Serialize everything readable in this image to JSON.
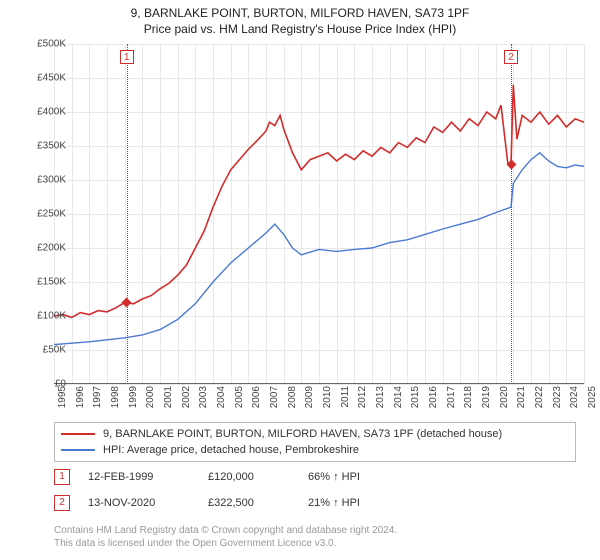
{
  "title": "9, BARNLAKE POINT, BURTON, MILFORD HAVEN, SA73 1PF",
  "subtitle": "Price paid vs. HM Land Registry's House Price Index (HPI)",
  "chart": {
    "type": "line",
    "background_color": "#fdfdfd",
    "grid_color": "#e8e8e8",
    "axis_color": "#666666",
    "ylim": [
      0,
      500000
    ],
    "ytick_step": 50000,
    "yticks": [
      "£0",
      "£50K",
      "£100K",
      "£150K",
      "£200K",
      "£250K",
      "£300K",
      "£350K",
      "£400K",
      "£450K",
      "£500K"
    ],
    "xlim": [
      1995,
      2025
    ],
    "xticks": [
      1995,
      1996,
      1997,
      1998,
      1999,
      2000,
      2001,
      2002,
      2003,
      2004,
      2005,
      2006,
      2007,
      2008,
      2009,
      2010,
      2011,
      2012,
      2013,
      2014,
      2015,
      2016,
      2017,
      2018,
      2019,
      2020,
      2021,
      2022,
      2023,
      2024,
      2025
    ],
    "label_fontsize": 10,
    "series": [
      {
        "name": "price_paid",
        "label": "9, BARNLAKE POINT, BURTON, MILFORD HAVEN, SA73 1PF (detached house)",
        "color": "#d12c2c",
        "width": 1.6,
        "data": [
          [
            1995,
            100000
          ],
          [
            1995.5,
            102000
          ],
          [
            1996,
            98000
          ],
          [
            1996.5,
            105000
          ],
          [
            1997,
            102000
          ],
          [
            1997.5,
            108000
          ],
          [
            1998,
            106000
          ],
          [
            1998.5,
            112000
          ],
          [
            1999,
            120000
          ],
          [
            1999.5,
            118000
          ],
          [
            2000,
            125000
          ],
          [
            2000.5,
            130000
          ],
          [
            2001,
            140000
          ],
          [
            2001.5,
            148000
          ],
          [
            2002,
            160000
          ],
          [
            2002.5,
            175000
          ],
          [
            2003,
            200000
          ],
          [
            2003.5,
            225000
          ],
          [
            2004,
            260000
          ],
          [
            2004.5,
            290000
          ],
          [
            2005,
            315000
          ],
          [
            2005.5,
            330000
          ],
          [
            2006,
            345000
          ],
          [
            2006.5,
            358000
          ],
          [
            2007,
            372000
          ],
          [
            2007.2,
            385000
          ],
          [
            2007.5,
            380000
          ],
          [
            2007.8,
            395000
          ],
          [
            2008,
            375000
          ],
          [
            2008.5,
            340000
          ],
          [
            2009,
            315000
          ],
          [
            2009.5,
            330000
          ],
          [
            2010,
            335000
          ],
          [
            2010.5,
            340000
          ],
          [
            2011,
            328000
          ],
          [
            2011.5,
            338000
          ],
          [
            2012,
            330000
          ],
          [
            2012.5,
            343000
          ],
          [
            2013,
            335000
          ],
          [
            2013.5,
            348000
          ],
          [
            2014,
            340000
          ],
          [
            2014.5,
            355000
          ],
          [
            2015,
            348000
          ],
          [
            2015.5,
            362000
          ],
          [
            2016,
            355000
          ],
          [
            2016.5,
            378000
          ],
          [
            2017,
            370000
          ],
          [
            2017.5,
            385000
          ],
          [
            2018,
            372000
          ],
          [
            2018.5,
            390000
          ],
          [
            2019,
            380000
          ],
          [
            2019.5,
            400000
          ],
          [
            2020,
            390000
          ],
          [
            2020.3,
            410000
          ],
          [
            2020.7,
            322500
          ],
          [
            2020.87,
            322500
          ],
          [
            2021,
            440000
          ],
          [
            2021.2,
            360000
          ],
          [
            2021.5,
            395000
          ],
          [
            2022,
            385000
          ],
          [
            2022.5,
            400000
          ],
          [
            2023,
            382000
          ],
          [
            2023.5,
            395000
          ],
          [
            2024,
            378000
          ],
          [
            2024.5,
            390000
          ],
          [
            2025,
            385000
          ]
        ]
      },
      {
        "name": "hpi",
        "label": "HPI: Average price, detached house, Pembrokeshire",
        "color": "#4a7bd1",
        "width": 1.4,
        "data": [
          [
            1995,
            58000
          ],
          [
            1996,
            60000
          ],
          [
            1997,
            62000
          ],
          [
            1998,
            65000
          ],
          [
            1999,
            68000
          ],
          [
            2000,
            72000
          ],
          [
            2001,
            80000
          ],
          [
            2002,
            95000
          ],
          [
            2003,
            118000
          ],
          [
            2004,
            150000
          ],
          [
            2005,
            178000
          ],
          [
            2006,
            200000
          ],
          [
            2007,
            222000
          ],
          [
            2007.5,
            235000
          ],
          [
            2008,
            220000
          ],
          [
            2008.5,
            200000
          ],
          [
            2009,
            190000
          ],
          [
            2010,
            198000
          ],
          [
            2011,
            195000
          ],
          [
            2012,
            198000
          ],
          [
            2013,
            200000
          ],
          [
            2014,
            208000
          ],
          [
            2015,
            212000
          ],
          [
            2016,
            220000
          ],
          [
            2017,
            228000
          ],
          [
            2018,
            235000
          ],
          [
            2019,
            242000
          ],
          [
            2020,
            252000
          ],
          [
            2020.87,
            260000
          ],
          [
            2021,
            295000
          ],
          [
            2021.5,
            315000
          ],
          [
            2022,
            330000
          ],
          [
            2022.5,
            340000
          ],
          [
            2023,
            328000
          ],
          [
            2023.5,
            320000
          ],
          [
            2024,
            318000
          ],
          [
            2024.5,
            322000
          ],
          [
            2025,
            320000
          ]
        ]
      }
    ],
    "markers": [
      {
        "id": "1",
        "date": "12-FEB-1999",
        "x": 1999.12,
        "y": 120000,
        "price": "£120,000",
        "pct": "66% ↑ HPI",
        "color": "#d12c2c"
      },
      {
        "id": "2",
        "date": "13-NOV-2020",
        "x": 2020.87,
        "y": 322500,
        "price": "£322,500",
        "pct": "21% ↑ HPI",
        "color": "#d12c2c"
      }
    ]
  },
  "legend": {
    "border_color": "#bbbbbb"
  },
  "attribution": {
    "line1": "Contains HM Land Registry data © Crown copyright and database right 2024.",
    "line2": "This data is licensed under the Open Government Licence v3.0."
  }
}
